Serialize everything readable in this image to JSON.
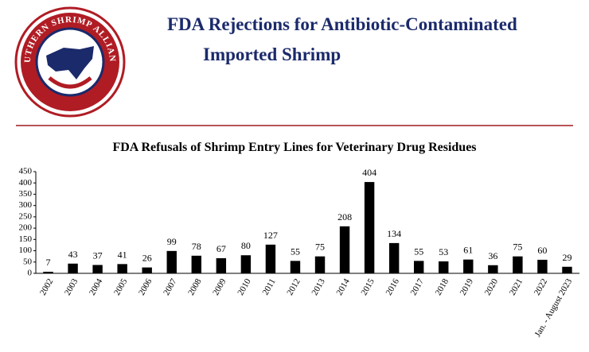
{
  "logo": {
    "text": "SOUTHERN SHRIMP ALLIANCE"
  },
  "header": {
    "title_lines": [
      "FDA Rejections for Antibiotic-Contaminated",
      "Imported Shrimp"
    ]
  },
  "chart_data": {
    "type": "bar",
    "title": "FDA Refusals of Shrimp  Entry  Lines for Veterinary  Drug  Residues",
    "categories": [
      "2002",
      "2003",
      "2004",
      "2005",
      "2006",
      "2007",
      "2008",
      "2009",
      "2010",
      "2011",
      "2012",
      "2013",
      "2014",
      "2015",
      "2016",
      "2017",
      "2018",
      "2019",
      "2020",
      "2021",
      "2022",
      "Jan. - August 2023"
    ],
    "values": [
      7,
      43,
      37,
      41,
      26,
      99,
      78,
      67,
      80,
      127,
      55,
      75,
      208,
      404,
      134,
      55,
      53,
      61,
      36,
      75,
      60,
      29
    ],
    "color": "#000000",
    "ylim": [
      0,
      450
    ],
    "yticks": [
      0,
      50,
      100,
      150,
      200,
      250,
      300,
      350,
      400,
      450
    ],
    "grid": false
  }
}
